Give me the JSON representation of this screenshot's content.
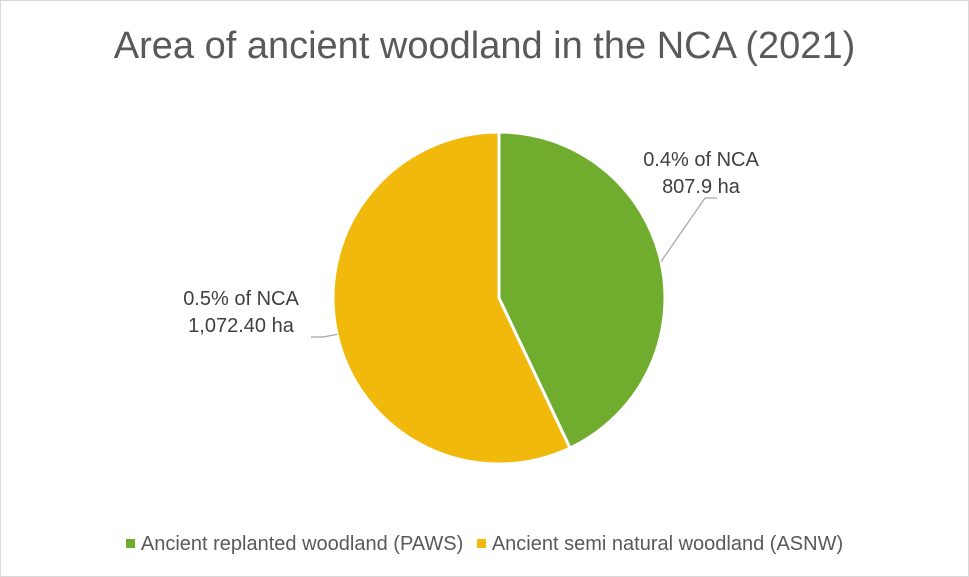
{
  "chart_data": {
    "type": "pie",
    "title": "Area of ancient woodland in the NCA (2021)",
    "categories": [
      "Ancient replanted woodland (PAWS)",
      "Ancient semi natural woodland (ASNW)"
    ],
    "values": [
      807.9,
      1072.4
    ],
    "colors": [
      "#70ad2f",
      "#f0b90b"
    ],
    "data_labels": [
      {
        "line1": "0.4% of NCA",
        "line2": "807.9 ha"
      },
      {
        "line1": "0.5% of NCA",
        "line2": "1,072.40 ha"
      }
    ],
    "legend_position": "bottom",
    "start_angle_deg": 0,
    "direction": "clockwise"
  }
}
